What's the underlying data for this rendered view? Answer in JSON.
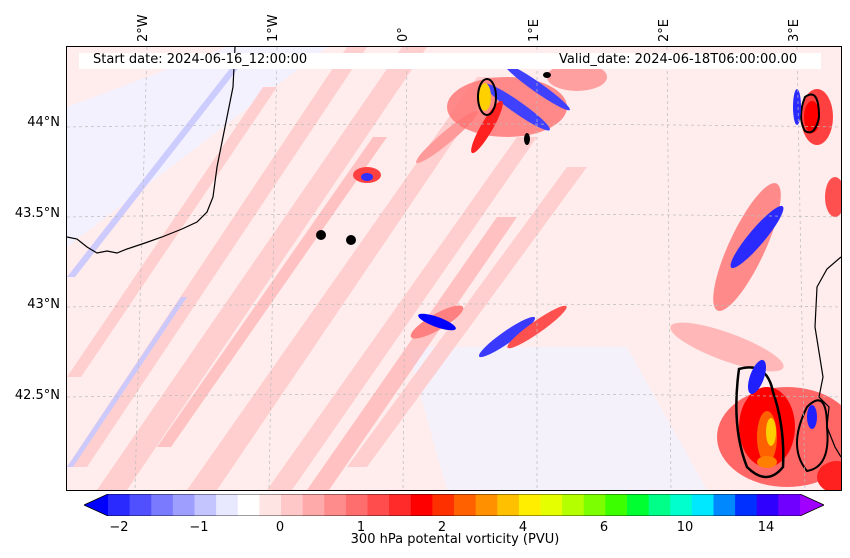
{
  "map": {
    "start_date": "Start date: 2024-06-16_12:00:00",
    "valid_date": "Valid_date: 2024-06-18T06:00:00.00",
    "lon_labels": [
      "2°W",
      "1°W",
      "0°",
      "1°E",
      "2°E",
      "3°E"
    ],
    "lat_labels": [
      "44°N",
      "43.5°N",
      "43°N",
      "42.5°N"
    ],
    "markers": [
      "point",
      "point"
    ]
  },
  "colorbar": {
    "label": "300 hPa potental vorticity (PVU)",
    "ticks": [
      "−2",
      "−1",
      "0",
      "1",
      "2",
      "4",
      "6",
      "10",
      "14"
    ],
    "colors": [
      "#0000ff",
      "#2a2aff",
      "#5050ff",
      "#7a7aff",
      "#9e9eff",
      "#c4c4ff",
      "#e8e8ff",
      "#ffffff",
      "#ffe4e4",
      "#ffc8c8",
      "#ffaaaa",
      "#ff8c8c",
      "#ff6e6e",
      "#ff4c4c",
      "#ff2a2a",
      "#ff0000",
      "#ff3000",
      "#ff6000",
      "#ff9000",
      "#ffc000",
      "#ffee00",
      "#e6ff00",
      "#b4ff00",
      "#7cff00",
      "#3cff00",
      "#00ff30",
      "#00ff88",
      "#00ffcc",
      "#00e8ff",
      "#0088ff",
      "#0030ff",
      "#3000ff",
      "#7000ff",
      "#a000ff"
    ]
  }
}
